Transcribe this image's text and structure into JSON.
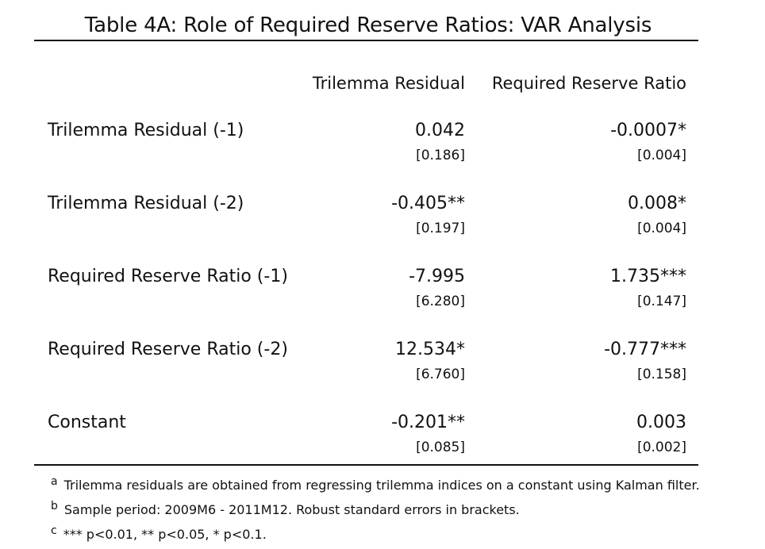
{
  "title": "Table 4A: Role of Required Reserve Ratios: VAR Analysis",
  "columns": [
    "Trilemma Residual",
    "Required Reserve Ratio"
  ],
  "rows": [
    {
      "label": "Trilemma Residual (-1)",
      "c1": "0.042",
      "c1_se": "[0.186]",
      "c2": "-0.0007*",
      "c2_se": "[0.004]"
    },
    {
      "label": "Trilemma Residual (-2)",
      "c1": "-0.405**",
      "c1_se": "[0.197]",
      "c2": "0.008*",
      "c2_se": "[0.004]"
    },
    {
      "label": "Required Reserve Ratio (-1)",
      "c1": "-7.995",
      "c1_se": "[6.280]",
      "c2": "1.735***",
      "c2_se": "[0.147]"
    },
    {
      "label": "Required Reserve Ratio (-2)",
      "c1": "12.534*",
      "c1_se": "[6.760]",
      "c2": "-0.777***",
      "c2_se": "[0.158]"
    },
    {
      "label": "Constant",
      "c1": "-0.201**",
      "c1_se": "[0.085]",
      "c2": "0.003",
      "c2_se": "[0.002]"
    }
  ],
  "notes": [
    {
      "mark": "a",
      "text": "Trilemma residuals are obtained from regressing trilemma indices on a constant using Kalman filter."
    },
    {
      "mark": "b",
      "text": "Sample period: 2009M6 - 2011M12. Robust standard errors in brackets."
    },
    {
      "mark": "c",
      "text": "*** p<0.01, ** p<0.05, * p<0.1."
    }
  ]
}
